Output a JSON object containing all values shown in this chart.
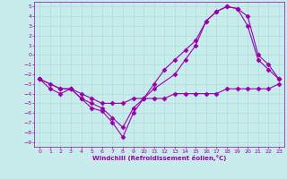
{
  "xlabel": "Windchill (Refroidissement éolien,°C)",
  "bg_color": "#c8ecec",
  "line_color": "#9900aa",
  "grid_color": "#aadddd",
  "xlim": [
    -0.5,
    23.5
  ],
  "ylim": [
    -9.5,
    5.5
  ],
  "xticks": [
    0,
    1,
    2,
    3,
    4,
    5,
    6,
    7,
    8,
    9,
    10,
    11,
    12,
    13,
    14,
    15,
    16,
    17,
    18,
    19,
    20,
    21,
    22,
    23
  ],
  "yticks": [
    5,
    4,
    3,
    2,
    1,
    0,
    -1,
    -2,
    -3,
    -4,
    -5,
    -6,
    -7,
    -8,
    -9
  ],
  "line1_x": [
    0,
    1,
    2,
    3,
    4,
    5,
    6,
    7,
    8,
    9,
    10,
    11,
    12,
    13,
    14,
    15,
    16,
    17,
    18,
    19,
    20,
    21,
    22,
    23
  ],
  "line1_y": [
    -2.5,
    -3.5,
    -4.0,
    -3.5,
    -4.0,
    -4.5,
    -5.0,
    -5.0,
    -5.0,
    -4.5,
    -4.5,
    -4.5,
    -4.5,
    -4.0,
    -4.0,
    -4.0,
    -4.0,
    -4.0,
    -3.5,
    -3.5,
    -3.5,
    -3.5,
    -3.5,
    -3.0
  ],
  "line2_x": [
    0,
    1,
    2,
    3,
    4,
    5,
    6,
    7,
    8,
    9,
    10,
    11,
    12,
    13,
    14,
    15,
    16,
    17,
    18,
    19,
    20,
    21,
    22,
    23
  ],
  "line2_y": [
    -2.5,
    -3.0,
    -3.5,
    -3.5,
    -4.5,
    -5.0,
    -5.5,
    -6.5,
    -7.5,
    -5.5,
    -4.5,
    -3.0,
    -1.5,
    -0.5,
    0.5,
    1.5,
    3.5,
    4.5,
    5.0,
    4.8,
    3.0,
    -0.5,
    -1.5,
    -2.5
  ],
  "line3_x": [
    0,
    2,
    3,
    4,
    5,
    6,
    7,
    8,
    9,
    10,
    11,
    13,
    14,
    15,
    16,
    17,
    18,
    19,
    20,
    21,
    22,
    23
  ],
  "line3_y": [
    -2.5,
    -3.5,
    -3.5,
    -4.5,
    -5.5,
    -5.8,
    -7.0,
    -8.5,
    -6.0,
    -4.5,
    -3.5,
    -2.0,
    -0.5,
    1.0,
    3.5,
    4.5,
    5.0,
    4.8,
    4.0,
    0.0,
    -1.0,
    -2.5
  ]
}
